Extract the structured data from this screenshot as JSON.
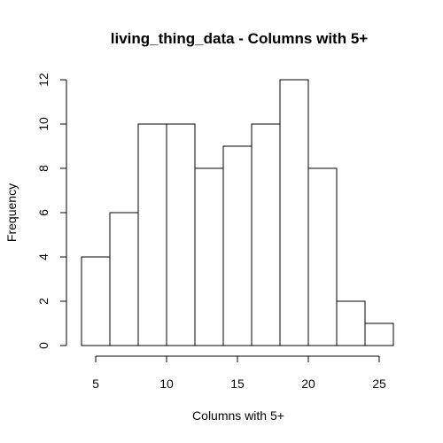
{
  "chart_data": {
    "type": "bar",
    "title": "living_thing_data - Columns with 5+",
    "xlabel": "Columns with 5+",
    "ylabel": "Frequency",
    "bins": [
      {
        "from": 4,
        "to": 6,
        "count": 4
      },
      {
        "from": 6,
        "to": 8,
        "count": 6
      },
      {
        "from": 8,
        "to": 10,
        "count": 10
      },
      {
        "from": 10,
        "to": 12,
        "count": 10
      },
      {
        "from": 12,
        "to": 14,
        "count": 8
      },
      {
        "from": 14,
        "to": 16,
        "count": 9
      },
      {
        "from": 16,
        "to": 18,
        "count": 10
      },
      {
        "from": 18,
        "to": 20,
        "count": 12
      },
      {
        "from": 20,
        "to": 22,
        "count": 8
      },
      {
        "from": 22,
        "to": 24,
        "count": 2
      },
      {
        "from": 24,
        "to": 26,
        "count": 1
      }
    ],
    "xticks": [
      5,
      10,
      15,
      20,
      25
    ],
    "yticks": [
      0,
      2,
      4,
      6,
      8,
      10,
      12
    ],
    "xlim": [
      4,
      26
    ],
    "ylim": [
      0,
      12
    ],
    "grid": false
  }
}
